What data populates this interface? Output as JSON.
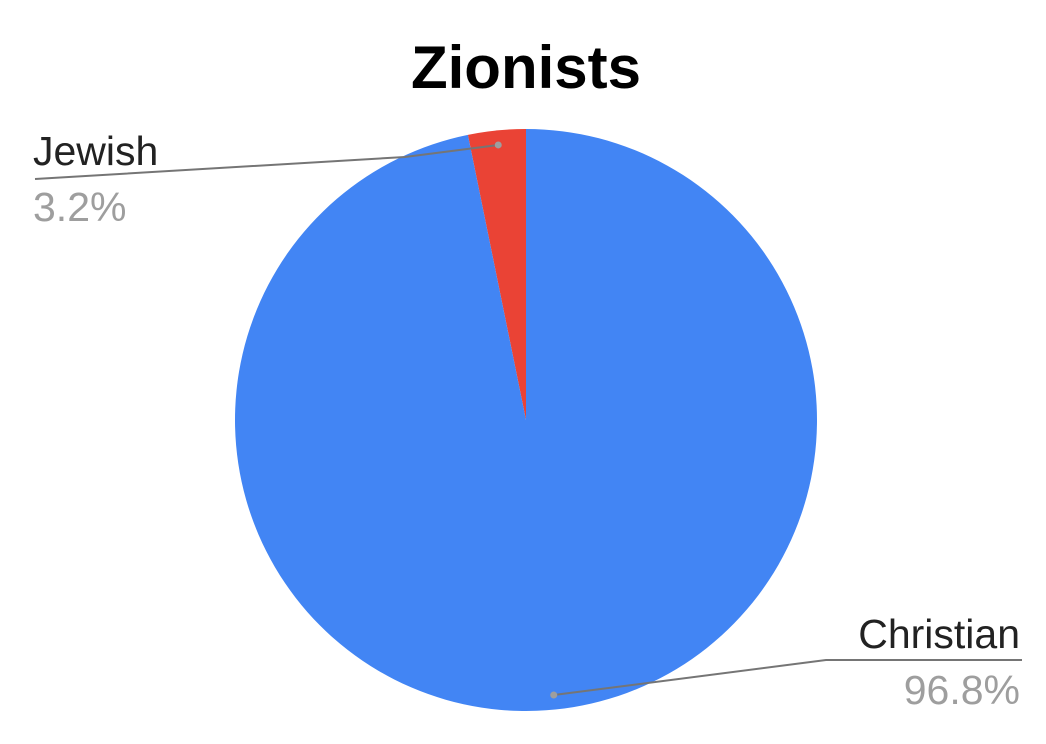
{
  "chart_data": {
    "type": "pie",
    "title": "Zionists",
    "slices": [
      {
        "label": "Jewish",
        "value": 3.2,
        "display": "3.2%",
        "color": "#ea4335"
      },
      {
        "label": "Christian",
        "value": 96.8,
        "display": "96.8%",
        "color": "#4285f4"
      }
    ],
    "start_angle_deg": 0,
    "direction": "counterclockwise",
    "leader_line_color": "#757575",
    "legend": "none"
  }
}
